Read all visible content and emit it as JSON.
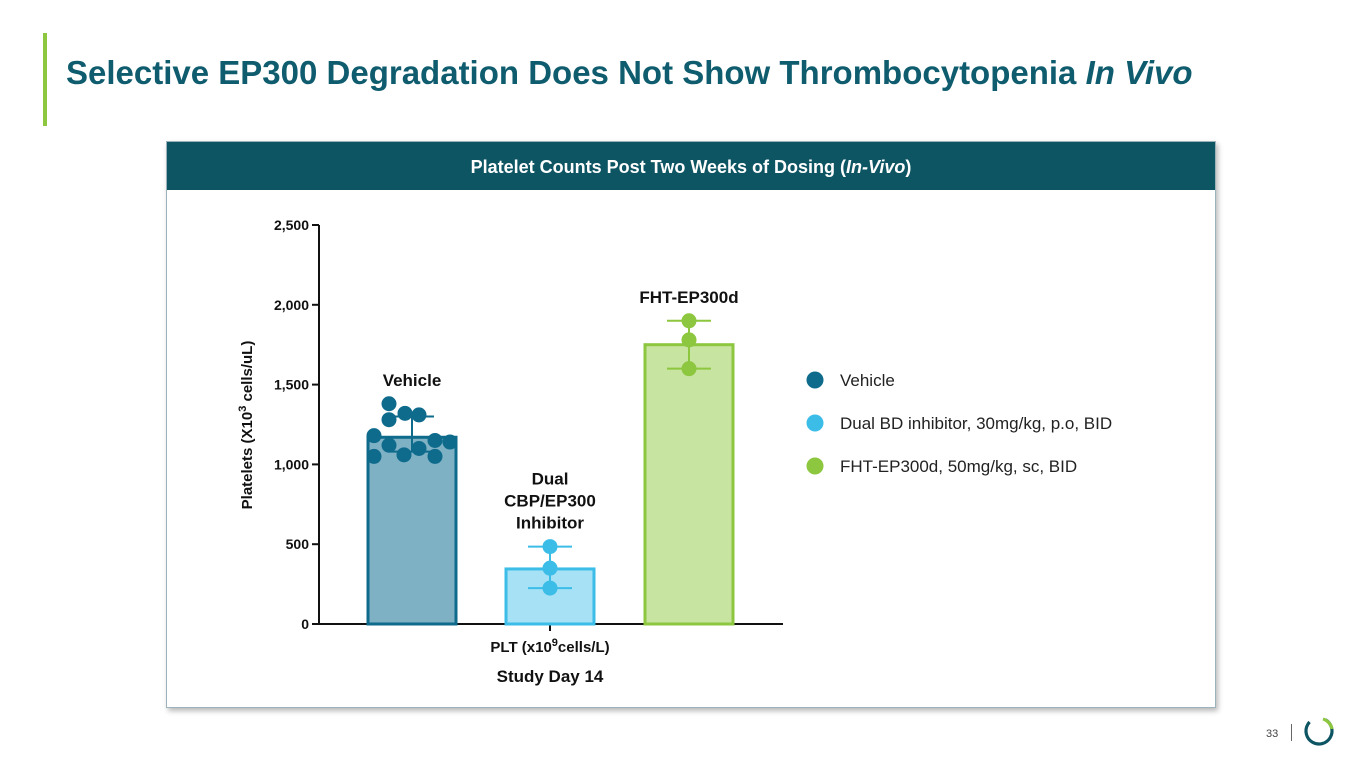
{
  "slide": {
    "title_main": "Selective EP300 Degradation Does Not Show Thrombocytopenia ",
    "title_italic": "In Vivo",
    "page_number": "33",
    "accent_color": "#8dc63f",
    "title_color": "#0e5c6e"
  },
  "panel": {
    "header_prefix": "Platelet Counts Post Two Weeks of Dosing (",
    "header_italic": "In-Vivo",
    "header_suffix": ")"
  },
  "chart_data": {
    "type": "bar",
    "ylabel_pre": "Platelets  (X10",
    "ylabel_sup": "3",
    "ylabel_post": " cells/uL)",
    "xlabel_pre": "PLT (x10",
    "xlabel_sup": "9",
    "xlabel_post": "cells/L)",
    "xsublabel": "Study Day 14",
    "ylim": [
      0,
      2500
    ],
    "yticks": [
      0,
      500,
      1000,
      1500,
      2000,
      2500
    ],
    "ytick_labels": [
      "0",
      "500",
      "1,000",
      "1,500",
      "2,000",
      "2,500"
    ],
    "series": [
      {
        "name": "Vehicle",
        "label_lines": [
          "Vehicle"
        ],
        "legend": "Vehicle",
        "mean": 1170,
        "error_low": 1080,
        "error_high": 1300,
        "points": [
          1380,
          1310,
          1320,
          1280,
          1180,
          1150,
          1120,
          1140,
          1100,
          1060,
          1050,
          1050
        ],
        "color": "#0e6b8c",
        "fill": "#7fb1c5"
      },
      {
        "name": "Dual CBP/EP300 Inhibitor",
        "label_lines": [
          "Dual",
          "CBP/EP300",
          "Inhibitor"
        ],
        "legend": "Dual BD inhibitor, 30mg/kg, p.o, BID",
        "mean": 345,
        "error_low": 225,
        "error_high": 485,
        "points": [
          485,
          350,
          225
        ],
        "color": "#3bbde8",
        "fill": "#a6e1f5"
      },
      {
        "name": "FHT-EP300d",
        "label_lines": [
          "FHT-EP300d"
        ],
        "legend": "FHT-EP300d, 50mg/kg, sc, BID",
        "mean": 1750,
        "error_low": 1600,
        "error_high": 1900,
        "points": [
          1900,
          1780,
          1600
        ],
        "color": "#8dc63f",
        "fill": "#c8e4a1"
      }
    ]
  }
}
